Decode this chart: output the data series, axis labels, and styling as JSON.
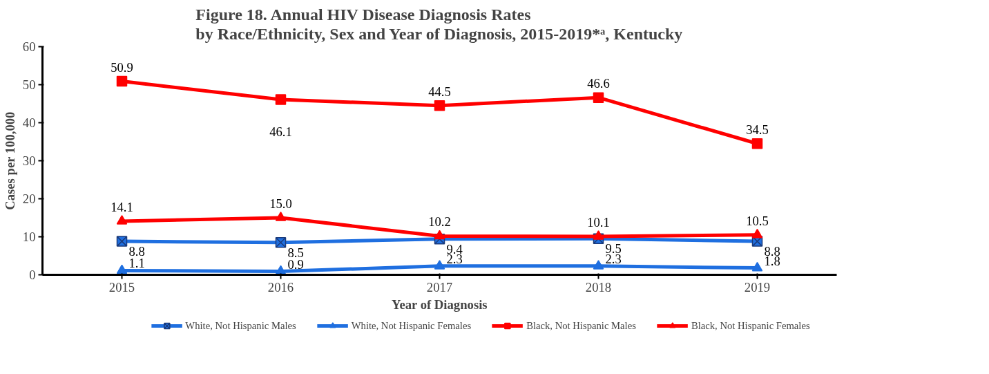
{
  "chart_data": {
    "type": "line",
    "title": "Figure 18. Annual HIV Disease Diagnosis Rates\nby Race/Ethnicity, Sex and Year of Diagnosis, 2015-2019*ᵃ, Kentucky",
    "xlabel": "Year of Diagnosis",
    "ylabel": "Cases per 100,000",
    "categories": [
      "2015",
      "2016",
      "2017",
      "2018",
      "2019"
    ],
    "series": [
      {
        "name": "White, Not Hispanic Males",
        "color": "#1f6fe0",
        "marker": "cross",
        "values": [
          8.8,
          8.5,
          9.4,
          9.5,
          8.8
        ]
      },
      {
        "name": "White, Not Hispanic Females",
        "color": "#1f6fe0",
        "marker": "triangle",
        "values": [
          1.1,
          0.9,
          2.3,
          2.3,
          1.8
        ]
      },
      {
        "name": "Black, Not Hispanic Males",
        "color": "#ff0000",
        "marker": "square",
        "values": [
          50.9,
          46.1,
          44.5,
          46.6,
          34.5
        ]
      },
      {
        "name": "Black, Not Hispanic Females",
        "color": "#ff0000",
        "marker": "triangle",
        "values": [
          14.1,
          15.0,
          10.2,
          10.1,
          10.5
        ],
        "value_labels": [
          "14.1",
          "15.0",
          "10.2",
          "10.1",
          "10.5"
        ]
      }
    ],
    "ylim": [
      0,
      60
    ],
    "yticks": [
      0,
      10,
      20,
      30,
      40,
      50,
      60
    ],
    "grid": false,
    "legend": "bottom",
    "data_labels": true,
    "line_style": "solid"
  }
}
